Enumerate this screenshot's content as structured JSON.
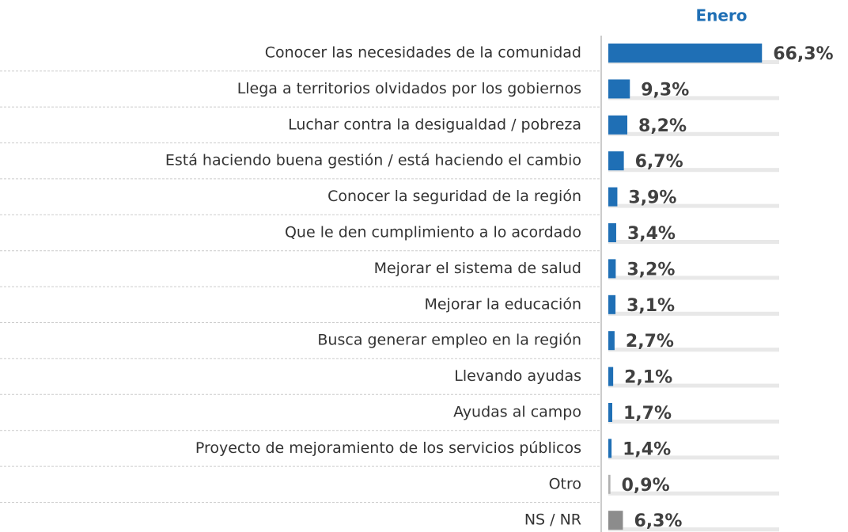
{
  "chart_data": {
    "type": "bar",
    "orientation": "horizontal",
    "series": [
      {
        "name": "Enero",
        "color": "#1f6fb5",
        "values": [
          66.3,
          9.3,
          8.2,
          6.7,
          3.9,
          3.4,
          3.2,
          3.1,
          2.7,
          2.1,
          1.7,
          1.4,
          0.9,
          6.3
        ],
        "value_labels": [
          "66,3%",
          "9,3%",
          "8,2%",
          "6,7%",
          "3,9%",
          "3,4%",
          "3,2%",
          "3,1%",
          "2,7%",
          "2,1%",
          "1,7%",
          "1,4%",
          "0,9%",
          "6,3%"
        ],
        "colors": [
          "#1f6fb5",
          "#1f6fb5",
          "#1f6fb5",
          "#1f6fb5",
          "#1f6fb5",
          "#1f6fb5",
          "#1f6fb5",
          "#1f6fb5",
          "#1f6fb5",
          "#1f6fb5",
          "#1f6fb5",
          "#1f6fb5",
          "#b0b0b0",
          "#8c8c8c"
        ]
      }
    ],
    "categories": [
      "Conocer las necesidades de la comunidad",
      "Llega a territorios olvidados por los gobiernos",
      "Luchar contra la desigualdad / pobreza",
      "Está haciendo buena gestión / está haciendo el cambio",
      "Conocer la seguridad de la región",
      "Que le den cumplimiento a lo acordado",
      "Mejorar el sistema de salud",
      "Mejorar la educación",
      "Busca generar empleo en la región",
      "Llevando ayudas",
      "Ayudas al campo",
      "Proyecto de mejoramiento de los servicios públicos",
      "Otro",
      "NS / NR"
    ]
  }
}
